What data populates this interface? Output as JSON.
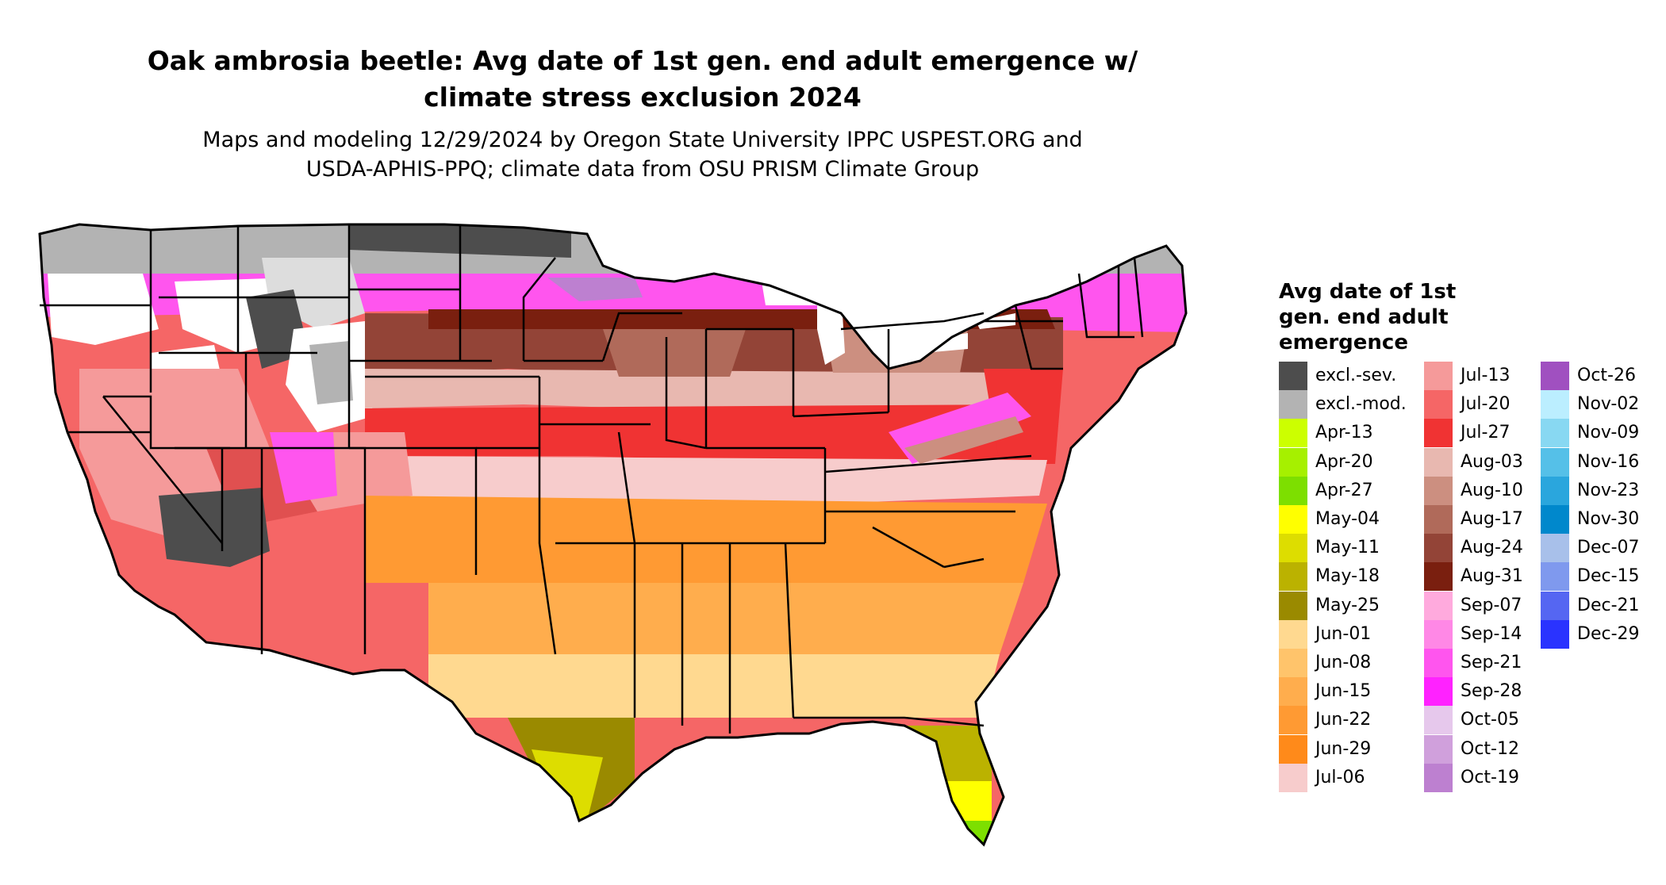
{
  "title_line1": "Oak ambrosia beetle: Avg date of 1st gen. end adult emergence w/",
  "title_line2": "climate stress exclusion 2024",
  "subtitle_line1": "Maps and modeling 12/29/2024 by Oregon State University IPPC USPEST.ORG and",
  "subtitle_line2": "USDA-APHIS-PPQ; climate data from OSU PRISM Climate Group",
  "legend": {
    "title_lines": [
      "Avg date of 1st",
      "gen. end adult",
      "emergence"
    ],
    "columns": [
      [
        {
          "label": "excl.-sev.",
          "color": "#4d4d4d"
        },
        {
          "label": "excl.-mod.",
          "color": "#b3b3b3"
        },
        {
          "label": "Apr-13",
          "color": "#ccff00"
        },
        {
          "label": "Apr-20",
          "color": "#a6f000"
        },
        {
          "label": "Apr-27",
          "color": "#7ddf00"
        },
        {
          "label": "May-04",
          "color": "#ffff00"
        },
        {
          "label": "May-11",
          "color": "#dddd00"
        },
        {
          "label": "May-18",
          "color": "#bbb200"
        },
        {
          "label": "May-25",
          "color": "#9a8a00"
        },
        {
          "label": "Jun-01",
          "color": "#ffd990"
        },
        {
          "label": "Jun-08",
          "color": "#ffc46b"
        },
        {
          "label": "Jun-15",
          "color": "#ffad4d"
        },
        {
          "label": "Jun-22",
          "color": "#ff9a33"
        },
        {
          "label": "Jun-29",
          "color": "#ff8a1a"
        },
        {
          "label": "Jul-06",
          "color": "#f7cccc"
        }
      ],
      [
        {
          "label": "Jul-13",
          "color": "#f59a9a"
        },
        {
          "label": "Jul-20",
          "color": "#f56666"
        },
        {
          "label": "Jul-27",
          "color": "#f03333"
        },
        {
          "label": "Aug-03",
          "color": "#e8b8b0"
        },
        {
          "label": "Aug-10",
          "color": "#cc8f80"
        },
        {
          "label": "Aug-17",
          "color": "#b06a5a"
        },
        {
          "label": "Aug-24",
          "color": "#934437"
        },
        {
          "label": "Aug-31",
          "color": "#7a1f0f"
        },
        {
          "label": "Sep-07",
          "color": "#ffaadd"
        },
        {
          "label": "Sep-14",
          "color": "#ff88e6"
        },
        {
          "label": "Sep-21",
          "color": "#ff55ee"
        },
        {
          "label": "Sep-28",
          "color": "#ff22ff"
        },
        {
          "label": "Oct-05",
          "color": "#e6c8ec"
        },
        {
          "label": "Oct-12",
          "color": "#d0a0dc"
        },
        {
          "label": "Oct-19",
          "color": "#bd80d0"
        }
      ],
      [
        {
          "label": "Oct-26",
          "color": "#a050c0"
        },
        {
          "label": "Nov-02",
          "color": "#bbeeff"
        },
        {
          "label": "Nov-09",
          "color": "#88d8f2"
        },
        {
          "label": "Nov-16",
          "color": "#55c0e8"
        },
        {
          "label": "Nov-23",
          "color": "#2aa6dd"
        },
        {
          "label": "Nov-30",
          "color": "#0088cc"
        },
        {
          "label": "Dec-07",
          "color": "#a8c0ea"
        },
        {
          "label": "Dec-15",
          "color": "#7f99ee"
        },
        {
          "label": "Dec-21",
          "color": "#5566f2"
        },
        {
          "label": "Dec-29",
          "color": "#2a33ff"
        }
      ]
    ]
  }
}
